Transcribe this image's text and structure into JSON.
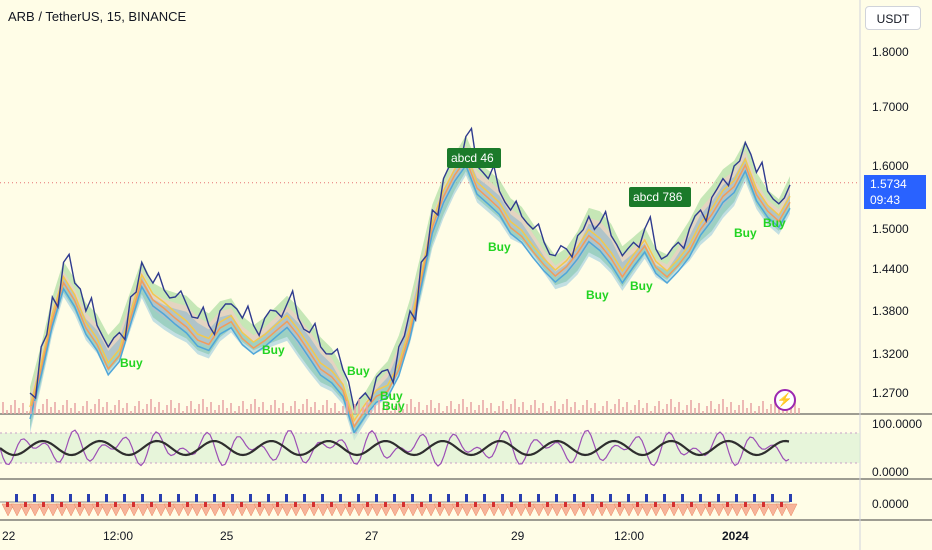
{
  "header": {
    "symbol_title": "ARB / TetherUS, 15, BINANCE",
    "currency_button": "USDT"
  },
  "price_tag": {
    "price": "1.5734",
    "countdown": "09:43"
  },
  "annotations": {
    "abcd_labels": [
      "abcd 46",
      "abcd 786"
    ],
    "buy_label": "Buy"
  },
  "colors": {
    "background": "#fffde7",
    "price_line": "#2f3b8f",
    "cloud_blue": "#4fa6d9",
    "cloud_pink": "#f8c8c8",
    "cloud_green": "#a7dc9b",
    "buy_green": "#22d422",
    "label_green": "#1b7a2a",
    "oscillator_purple": "#9c4fb5",
    "accent_blue": "#2962ff"
  },
  "chart_data": [
    {
      "type": "line",
      "panel": "price",
      "y_axis_ticks": [
        "1.8000",
        "1.7000",
        "1.6000",
        "1.5000",
        "1.4400",
        "1.3800",
        "1.3200",
        "1.2700"
      ],
      "x_axis_ticks": [
        "22",
        "12:00",
        "25",
        "27",
        "29",
        "12:00",
        "2024"
      ],
      "last_price": 1.5734,
      "series": [
        {
          "values": [
            1.27,
            1.33,
            1.4,
            1.45,
            1.42,
            1.38,
            1.36,
            1.33,
            1.35,
            1.4,
            1.45,
            1.42,
            1.41,
            1.4,
            1.39,
            1.37,
            1.36,
            1.38,
            1.39,
            1.37,
            1.36,
            1.37,
            1.38,
            1.39,
            1.37,
            1.35,
            1.33,
            1.32,
            1.3,
            1.25,
            1.27,
            1.29,
            1.3,
            1.33,
            1.38,
            1.45,
            1.53,
            1.58,
            1.62,
            1.65,
            1.6,
            1.58,
            1.56,
            1.53,
            1.52,
            1.5,
            1.48,
            1.46,
            1.47,
            1.49,
            1.52,
            1.51,
            1.49,
            1.46,
            1.48,
            1.5,
            1.47,
            1.46,
            1.48,
            1.5,
            1.53,
            1.55,
            1.58,
            1.6,
            1.64,
            1.59,
            1.56,
            1.54,
            1.57
          ]
        }
      ]
    },
    {
      "type": "line",
      "panel": "oscillator",
      "y_axis_ticks": [
        "100.0000",
        "0.0000"
      ]
    },
    {
      "type": "bar",
      "panel": "histogram",
      "y_axis_ticks": [
        "0.0000"
      ]
    }
  ]
}
